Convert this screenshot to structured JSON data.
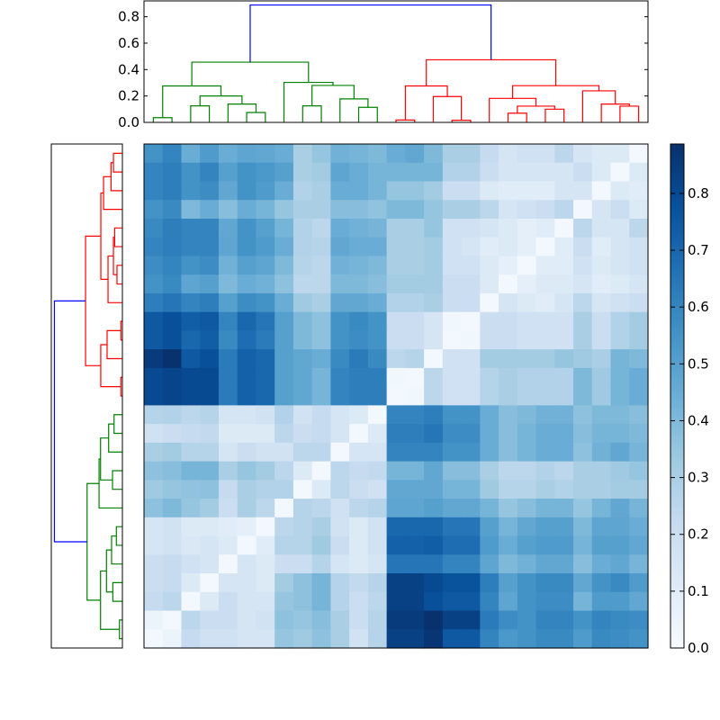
{
  "chart_data": [
    {
      "type": "heatmap",
      "title": "",
      "colormap": "Blues",
      "vmin": 0.0,
      "vmax": 0.887,
      "colorbar": {
        "ticks": [
          0.0,
          0.1,
          0.2,
          0.3,
          0.4,
          0.5,
          0.6,
          0.7,
          0.8
        ],
        "tick_labels": [
          "0.0",
          "0.1",
          "0.2",
          "0.3",
          "0.4",
          "0.5",
          "0.6",
          "0.7",
          "0.8"
        ],
        "placement": "right"
      },
      "values": [
        [
          0.55,
          0.6,
          0.45,
          0.52,
          0.45,
          0.48,
          0.47,
          0.45,
          0.3,
          0.35,
          0.43,
          0.42,
          0.4,
          0.45,
          0.47,
          0.4,
          0.3,
          0.3,
          0.22,
          0.15,
          0.18,
          0.18,
          0.25,
          0.15,
          0.12,
          0.12,
          0.02
        ],
        [
          0.6,
          0.62,
          0.55,
          0.6,
          0.5,
          0.55,
          0.53,
          0.5,
          0.3,
          0.32,
          0.48,
          0.45,
          0.42,
          0.42,
          0.42,
          0.42,
          0.28,
          0.28,
          0.2,
          0.15,
          0.15,
          0.15,
          0.15,
          0.2,
          0.12,
          0.02,
          0.12
        ],
        [
          0.6,
          0.62,
          0.55,
          0.57,
          0.47,
          0.55,
          0.52,
          0.45,
          0.28,
          0.3,
          0.45,
          0.45,
          0.42,
          0.35,
          0.35,
          0.32,
          0.2,
          0.2,
          0.12,
          0.1,
          0.1,
          0.1,
          0.15,
          0.15,
          0.02,
          0.12,
          0.1
        ],
        [
          0.55,
          0.58,
          0.4,
          0.45,
          0.38,
          0.45,
          0.42,
          0.35,
          0.3,
          0.3,
          0.38,
          0.38,
          0.36,
          0.4,
          0.4,
          0.35,
          0.3,
          0.3,
          0.25,
          0.15,
          0.18,
          0.2,
          0.25,
          0.02,
          0.15,
          0.2,
          0.12
        ],
        [
          0.58,
          0.62,
          0.6,
          0.6,
          0.47,
          0.55,
          0.5,
          0.42,
          0.28,
          0.25,
          0.45,
          0.43,
          0.42,
          0.3,
          0.3,
          0.35,
          0.18,
          0.18,
          0.15,
          0.12,
          0.08,
          0.1,
          0.02,
          0.25,
          0.15,
          0.15,
          0.25
        ],
        [
          0.6,
          0.62,
          0.6,
          0.6,
          0.48,
          0.55,
          0.52,
          0.45,
          0.28,
          0.27,
          0.47,
          0.45,
          0.45,
          0.3,
          0.3,
          0.32,
          0.18,
          0.15,
          0.1,
          0.12,
          0.08,
          0.02,
          0.1,
          0.2,
          0.1,
          0.15,
          0.18
        ],
        [
          0.57,
          0.6,
          0.55,
          0.57,
          0.43,
          0.5,
          0.48,
          0.4,
          0.27,
          0.25,
          0.43,
          0.42,
          0.4,
          0.3,
          0.3,
          0.32,
          0.18,
          0.18,
          0.12,
          0.08,
          0.02,
          0.1,
          0.1,
          0.18,
          0.12,
          0.15,
          0.18
        ],
        [
          0.55,
          0.58,
          0.48,
          0.5,
          0.4,
          0.45,
          0.43,
          0.37,
          0.25,
          0.25,
          0.4,
          0.4,
          0.38,
          0.32,
          0.32,
          0.32,
          0.2,
          0.2,
          0.12,
          0.02,
          0.08,
          0.12,
          0.12,
          0.15,
          0.1,
          0.12,
          0.15
        ],
        [
          0.62,
          0.65,
          0.6,
          0.62,
          0.5,
          0.57,
          0.55,
          0.45,
          0.33,
          0.3,
          0.47,
          0.47,
          0.45,
          0.28,
          0.28,
          0.3,
          0.2,
          0.2,
          0.02,
          0.15,
          0.12,
          0.1,
          0.15,
          0.25,
          0.15,
          0.18,
          0.2
        ],
        [
          0.75,
          0.78,
          0.73,
          0.75,
          0.6,
          0.7,
          0.65,
          0.5,
          0.4,
          0.37,
          0.55,
          0.58,
          0.55,
          0.2,
          0.2,
          0.15,
          0.03,
          0.02,
          0.2,
          0.2,
          0.18,
          0.18,
          0.18,
          0.3,
          0.2,
          0.28,
          0.32
        ],
        [
          0.75,
          0.78,
          0.7,
          0.73,
          0.58,
          0.68,
          0.63,
          0.5,
          0.4,
          0.37,
          0.55,
          0.57,
          0.55,
          0.2,
          0.2,
          0.15,
          0.02,
          0.03,
          0.2,
          0.2,
          0.18,
          0.18,
          0.18,
          0.3,
          0.2,
          0.28,
          0.32
        ],
        [
          0.85,
          0.88,
          0.75,
          0.78,
          0.63,
          0.72,
          0.7,
          0.5,
          0.47,
          0.45,
          0.58,
          0.63,
          0.58,
          0.25,
          0.27,
          0.02,
          0.18,
          0.18,
          0.32,
          0.32,
          0.32,
          0.32,
          0.35,
          0.33,
          0.3,
          0.42,
          0.4
        ],
        [
          0.8,
          0.82,
          0.8,
          0.8,
          0.63,
          0.72,
          0.7,
          0.5,
          0.47,
          0.42,
          0.6,
          0.62,
          0.62,
          0.03,
          0.02,
          0.25,
          0.18,
          0.18,
          0.27,
          0.3,
          0.28,
          0.28,
          0.28,
          0.4,
          0.33,
          0.42,
          0.45
        ],
        [
          0.8,
          0.82,
          0.8,
          0.8,
          0.63,
          0.72,
          0.7,
          0.5,
          0.47,
          0.42,
          0.6,
          0.62,
          0.62,
          0.02,
          0.03,
          0.25,
          0.18,
          0.18,
          0.27,
          0.3,
          0.28,
          0.28,
          0.28,
          0.4,
          0.33,
          0.42,
          0.45
        ],
        [
          0.27,
          0.28,
          0.25,
          0.27,
          0.15,
          0.15,
          0.17,
          0.28,
          0.17,
          0.22,
          0.15,
          0.12,
          0.02,
          0.6,
          0.6,
          0.62,
          0.55,
          0.55,
          0.45,
          0.38,
          0.4,
          0.43,
          0.43,
          0.37,
          0.4,
          0.4,
          0.38
        ],
        [
          0.18,
          0.2,
          0.22,
          0.23,
          0.12,
          0.12,
          0.12,
          0.25,
          0.2,
          0.22,
          0.15,
          0.02,
          0.12,
          0.62,
          0.62,
          0.65,
          0.57,
          0.57,
          0.45,
          0.38,
          0.42,
          0.45,
          0.45,
          0.38,
          0.42,
          0.42,
          0.4
        ],
        [
          0.3,
          0.32,
          0.27,
          0.27,
          0.15,
          0.2,
          0.17,
          0.17,
          0.25,
          0.25,
          0.02,
          0.15,
          0.15,
          0.6,
          0.6,
          0.6,
          0.55,
          0.55,
          0.45,
          0.38,
          0.42,
          0.45,
          0.45,
          0.37,
          0.43,
          0.47,
          0.42
        ],
        [
          0.37,
          0.38,
          0.42,
          0.42,
          0.3,
          0.35,
          0.32,
          0.25,
          0.12,
          0.02,
          0.25,
          0.22,
          0.23,
          0.42,
          0.42,
          0.47,
          0.38,
          0.38,
          0.3,
          0.25,
          0.25,
          0.28,
          0.25,
          0.3,
          0.3,
          0.33,
          0.35
        ],
        [
          0.33,
          0.35,
          0.36,
          0.37,
          0.22,
          0.3,
          0.28,
          0.28,
          0.02,
          0.12,
          0.25,
          0.2,
          0.18,
          0.47,
          0.47,
          0.47,
          0.42,
          0.42,
          0.33,
          0.27,
          0.27,
          0.3,
          0.28,
          0.3,
          0.3,
          0.32,
          0.32
        ],
        [
          0.37,
          0.4,
          0.35,
          0.32,
          0.2,
          0.3,
          0.25,
          0.02,
          0.27,
          0.25,
          0.18,
          0.25,
          0.27,
          0.48,
          0.48,
          0.5,
          0.47,
          0.47,
          0.42,
          0.35,
          0.38,
          0.42,
          0.42,
          0.35,
          0.42,
          0.47,
          0.42
        ],
        [
          0.15,
          0.17,
          0.12,
          0.12,
          0.1,
          0.08,
          0.02,
          0.25,
          0.27,
          0.3,
          0.17,
          0.12,
          0.17,
          0.7,
          0.7,
          0.7,
          0.65,
          0.65,
          0.5,
          0.42,
          0.47,
          0.5,
          0.5,
          0.4,
          0.48,
          0.48,
          0.45
        ],
        [
          0.15,
          0.17,
          0.13,
          0.15,
          0.12,
          0.02,
          0.1,
          0.27,
          0.27,
          0.33,
          0.2,
          0.12,
          0.17,
          0.72,
          0.72,
          0.73,
          0.68,
          0.68,
          0.52,
          0.45,
          0.5,
          0.52,
          0.52,
          0.42,
          0.5,
          0.5,
          0.47
        ],
        [
          0.2,
          0.22,
          0.18,
          0.15,
          0.02,
          0.15,
          0.12,
          0.2,
          0.2,
          0.27,
          0.15,
          0.12,
          0.15,
          0.65,
          0.65,
          0.65,
          0.6,
          0.6,
          0.48,
          0.4,
          0.43,
          0.47,
          0.47,
          0.38,
          0.45,
          0.47,
          0.42
        ],
        [
          0.2,
          0.22,
          0.12,
          0.02,
          0.15,
          0.15,
          0.12,
          0.32,
          0.37,
          0.42,
          0.27,
          0.23,
          0.27,
          0.83,
          0.83,
          0.8,
          0.77,
          0.77,
          0.62,
          0.5,
          0.55,
          0.58,
          0.58,
          0.47,
          0.55,
          0.58,
          0.52
        ],
        [
          0.22,
          0.25,
          0.02,
          0.12,
          0.2,
          0.15,
          0.15,
          0.35,
          0.37,
          0.42,
          0.27,
          0.2,
          0.25,
          0.83,
          0.83,
          0.78,
          0.75,
          0.75,
          0.6,
          0.48,
          0.55,
          0.57,
          0.57,
          0.42,
          0.52,
          0.52,
          0.47
        ],
        [
          0.05,
          0.02,
          0.25,
          0.2,
          0.2,
          0.15,
          0.17,
          0.37,
          0.35,
          0.38,
          0.3,
          0.2,
          0.27,
          0.85,
          0.85,
          0.88,
          0.83,
          0.83,
          0.63,
          0.57,
          0.55,
          0.6,
          0.6,
          0.55,
          0.6,
          0.58,
          0.57
        ],
        [
          0.02,
          0.05,
          0.22,
          0.18,
          0.18,
          0.15,
          0.15,
          0.35,
          0.33,
          0.37,
          0.3,
          0.17,
          0.27,
          0.83,
          0.83,
          0.87,
          0.75,
          0.75,
          0.6,
          0.53,
          0.55,
          0.58,
          0.58,
          0.52,
          0.58,
          0.57,
          0.55
        ]
      ]
    },
    {
      "type": "dendrogram",
      "orientation": "top",
      "ylim": [
        0,
        0.92
      ],
      "yticks": [
        0.0,
        0.2,
        0.4,
        0.6,
        0.8
      ],
      "ytick_labels": [
        "0.0",
        "0.2",
        "0.4",
        "0.6",
        "0.8"
      ],
      "leaves": 27,
      "merges": [
        [
          0,
          1,
          0.036,
          "g"
        ],
        [
          2,
          3,
          0.125,
          "g"
        ],
        [
          5,
          6,
          0.075,
          "g"
        ],
        [
          4,
          29,
          0.139,
          "g"
        ],
        [
          28,
          30,
          0.2,
          "g"
        ],
        [
          27,
          31,
          0.276,
          "g"
        ],
        [
          8,
          9,
          0.125,
          "g"
        ],
        [
          11,
          12,
          0.114,
          "g"
        ],
        [
          10,
          34,
          0.178,
          "g"
        ],
        [
          33,
          35,
          0.28,
          "g"
        ],
        [
          7,
          36,
          0.303,
          "g"
        ],
        [
          32,
          37,
          0.456,
          "g"
        ],
        [
          13,
          14,
          0.018,
          "r"
        ],
        [
          16,
          17,
          0.016,
          "r"
        ],
        [
          15,
          40,
          0.196,
          "r"
        ],
        [
          39,
          41,
          0.276,
          "r"
        ],
        [
          19,
          20,
          0.07,
          "r"
        ],
        [
          21,
          22,
          0.1,
          "r"
        ],
        [
          43,
          44,
          0.123,
          "r"
        ],
        [
          18,
          45,
          0.182,
          "r"
        ],
        [
          25,
          26,
          0.123,
          "r"
        ],
        [
          24,
          47,
          0.139,
          "r"
        ],
        [
          23,
          48,
          0.239,
          "r"
        ],
        [
          46,
          49,
          0.278,
          "r"
        ],
        [
          42,
          50,
          0.474,
          "r"
        ],
        [
          38,
          51,
          0.889,
          "b"
        ]
      ]
    },
    {
      "type": "dendrogram",
      "orientation": "left",
      "xlim": [
        0.92,
        0
      ],
      "leaves": 27,
      "merges": [
        [
          0,
          1,
          0.116,
          "r"
        ],
        [
          27,
          2,
          0.147,
          "r"
        ],
        [
          28,
          3,
          0.244,
          "r"
        ],
        [
          4,
          5,
          0.1,
          "r"
        ],
        [
          6,
          7,
          0.07,
          "r"
        ],
        [
          30,
          31,
          0.116,
          "r"
        ],
        [
          32,
          8,
          0.186,
          "r"
        ],
        [
          29,
          33,
          0.279,
          "r"
        ],
        [
          9,
          10,
          0.02,
          "r"
        ],
        [
          35,
          11,
          0.198,
          "r"
        ],
        [
          12,
          13,
          0.02,
          "r"
        ],
        [
          36,
          37,
          0.28,
          "r"
        ],
        [
          34,
          38,
          0.477,
          "r"
        ],
        [
          14,
          15,
          0.108,
          "g"
        ],
        [
          40,
          16,
          0.178,
          "g"
        ],
        [
          17,
          18,
          0.128,
          "g"
        ],
        [
          41,
          42,
          0.283,
          "g"
        ],
        [
          43,
          19,
          0.302,
          "g"
        ],
        [
          20,
          21,
          0.078,
          "g"
        ],
        [
          45,
          22,
          0.14,
          "g"
        ],
        [
          23,
          24,
          0.124,
          "g"
        ],
        [
          46,
          47,
          0.206,
          "g"
        ],
        [
          25,
          26,
          0.038,
          "g"
        ],
        [
          48,
          49,
          0.283,
          "g"
        ],
        [
          44,
          50,
          0.457,
          "g"
        ],
        [
          39,
          51,
          0.88,
          "b"
        ]
      ]
    }
  ],
  "colors": {
    "g": "#008000",
    "r": "#ff0000",
    "b": "#0000ff"
  }
}
